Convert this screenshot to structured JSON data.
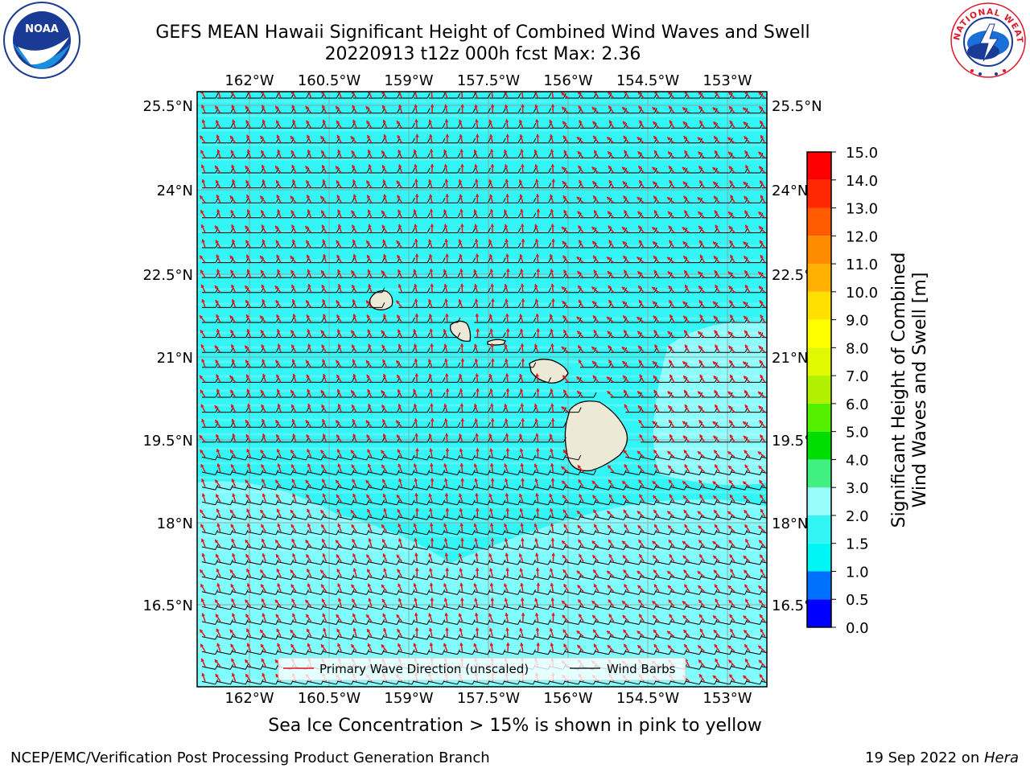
{
  "header": {
    "title_line1": "GEFS MEAN Hawaii Significant Height of Combined Wind Waves and Swell",
    "title_line2": "20220913 t12z 000h fcst   Max: 2.36"
  },
  "logos": {
    "left": {
      "name": "NOAA",
      "ring_text": "NATIONAL OCEANIC AND ATMOSPHERIC ADMINISTRATION · U.S. DEPARTMENT OF COMMERCE"
    },
    "right": {
      "name": "NATIONAL WEATHER SERVICE"
    }
  },
  "map": {
    "lon_labels": [
      "162°W",
      "160.5°W",
      "159°W",
      "157.5°W",
      "156°W",
      "154.5°W",
      "153°W"
    ],
    "lat_labels": [
      "25.5°N",
      "24°N",
      "22.5°N",
      "21°N",
      "19.5°N",
      "18°N",
      "16.5°N"
    ],
    "ocean_color": "#33f5f5",
    "light_region_color": "#99fdfd",
    "land_color": "#ede9d7",
    "wave_arrow_color": "#e8131a",
    "barb_color": "#000000"
  },
  "legend": {
    "wave_label": "Primary Wave Direction (unscaled)",
    "barb_label": "Wind Barbs"
  },
  "colorbar": {
    "label_line1": "Significant Height of Combined",
    "label_line2": "Wind Waves and Swell [m]",
    "ticks": [
      "0.0",
      "0.5",
      "1.0",
      "1.5",
      "2.0",
      "3.0",
      "4.0",
      "5.0",
      "6.0",
      "7.0",
      "8.0",
      "9.0",
      "10.0",
      "11.0",
      "12.0",
      "13.0",
      "14.0",
      "15.0"
    ],
    "colors": [
      "#0000ff",
      "#0070ff",
      "#00f5f5",
      "#33f5f5",
      "#99fdfd",
      "#40f080",
      "#00dd00",
      "#55f000",
      "#b0f000",
      "#e0f800",
      "#ffff00",
      "#ffe000",
      "#ffb000",
      "#ff8c00",
      "#ff5a00",
      "#ff2800",
      "#ff0000"
    ]
  },
  "chart_data": {
    "type": "heatmap",
    "title": "GEFS MEAN Hawaii Significant Height of Combined Wind Waves and Swell",
    "subtitle": "20220913 t12z 000h fcst   Max: 2.36",
    "max_value": 2.36,
    "units": "m",
    "xlim": [
      "163°W",
      "152.2°W"
    ],
    "ylim": [
      "15.2°N",
      "25.8°N"
    ]
  },
  "notes": {
    "sea_ice": "Sea Ice Concentration > 15% is shown in pink to yellow"
  },
  "footer": {
    "left": "NCEP/EMC/Verification Post Processing Product Generation Branch",
    "date": "19 Sep 2022 on ",
    "host": "Hera"
  }
}
